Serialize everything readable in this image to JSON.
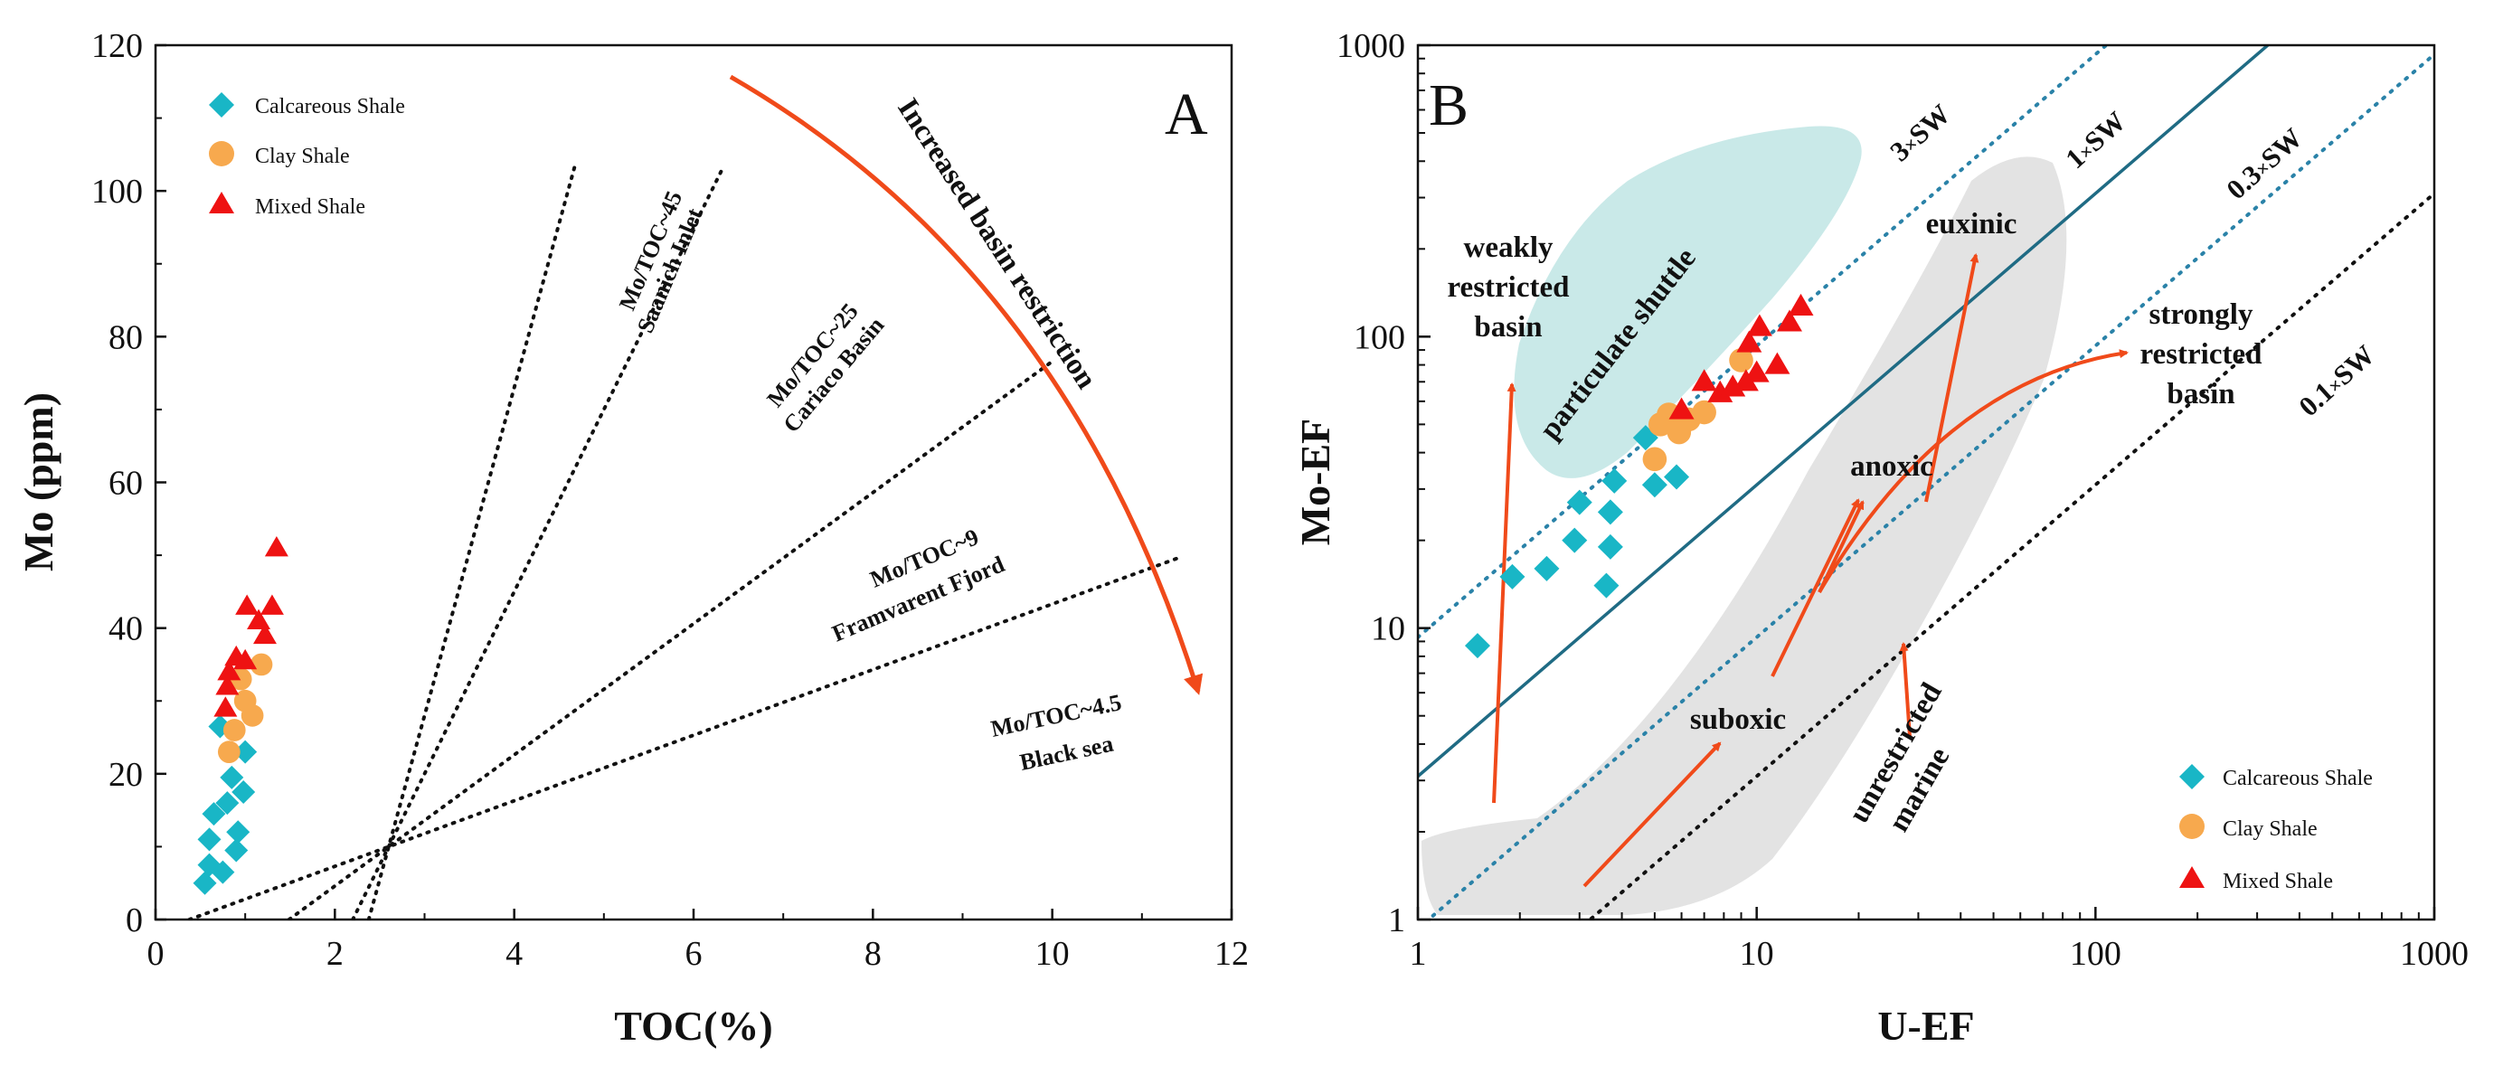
{
  "colors": {
    "calcareous": "#19b6c6",
    "clay": "#f7a94e",
    "mixed": "#ee1212",
    "arrow": "#f04a1a",
    "sw_solid": "#1f6b84",
    "sw_dotted": "#2a82a8",
    "shuttle_fill": "#c9e9e8",
    "gray_field": "#e3e3e3"
  },
  "chart_data": [
    {
      "type": "scatter",
      "panel_label": "A",
      "xlabel": "TOC(%)",
      "ylabel": "Mo (ppm)",
      "xlim": [
        0,
        12
      ],
      "ylim": [
        0,
        120
      ],
      "x_ticks": [
        "0",
        "2",
        "4",
        "6",
        "8",
        "10",
        "12"
      ],
      "y_ticks": [
        "0",
        "20",
        "40",
        "60",
        "80",
        "100",
        "120"
      ],
      "legend": [
        "Calcareous Shale",
        "Clay Shale",
        "Mixed Shale"
      ],
      "series": [
        {
          "name": "Calcareous Shale",
          "marker": "diamond",
          "points": [
            [
              0.55,
              5
            ],
            [
              0.6,
              7.5
            ],
            [
              0.6,
              11
            ],
            [
              0.65,
              14.5
            ],
            [
              0.72,
              26.5
            ],
            [
              0.75,
              6.5
            ],
            [
              0.8,
              16
            ],
            [
              0.85,
              19.5
            ],
            [
              0.9,
              9.5
            ],
            [
              0.92,
              12
            ],
            [
              0.98,
              17.5
            ],
            [
              1.0,
              23
            ]
          ]
        },
        {
          "name": "Clay Shale",
          "marker": "circle",
          "points": [
            [
              0.82,
              23
            ],
            [
              0.88,
              26
            ],
            [
              0.95,
              33
            ],
            [
              1.0,
              30
            ],
            [
              1.08,
              28
            ],
            [
              1.18,
              35
            ]
          ]
        },
        {
          "name": "Mixed Shale",
          "marker": "triangle",
          "points": [
            [
              0.78,
              29
            ],
            [
              0.8,
              32
            ],
            [
              0.82,
              34
            ],
            [
              0.9,
              36
            ],
            [
              1.0,
              35.5
            ],
            [
              1.02,
              43
            ],
            [
              1.15,
              41
            ],
            [
              1.22,
              39
            ],
            [
              1.3,
              43
            ],
            [
              1.35,
              51
            ]
          ]
        }
      ],
      "reference_lines": [
        {
          "ratio": 45,
          "label_1": "Mo/TOC~45",
          "label_2": "Saanich Inlet"
        },
        {
          "ratio": 25,
          "label_1": "Mo/TOC~25",
          "label_2": "Cariaco Basin"
        },
        {
          "ratio": 9,
          "label_1": "Mo/TOC~9",
          "label_2": "Framvarent Fjord"
        },
        {
          "ratio": 4.5,
          "label_1": "Mo/TOC~4.5",
          "label_2": "Black sea"
        }
      ],
      "arrow_label": "Increased basin restriction"
    },
    {
      "type": "scatter",
      "panel_label": "B",
      "xlabel": "U-EF",
      "ylabel": "Mo-EF",
      "x_scale": "log",
      "y_scale": "log",
      "xlim": [
        1,
        1000
      ],
      "ylim": [
        1,
        1000
      ],
      "x_ticks": [
        "1",
        "10",
        "100",
        "1000"
      ],
      "y_ticks": [
        "1",
        "10",
        "100",
        "1000"
      ],
      "legend": [
        "Calcareous Shale",
        "Clay Shale",
        "Mixed Shale"
      ],
      "series": [
        {
          "name": "Calcareous Shale",
          "marker": "diamond",
          "points": [
            [
              1.5,
              8.7
            ],
            [
              1.9,
              15
            ],
            [
              2.4,
              16
            ],
            [
              2.9,
              20
            ],
            [
              3.0,
              27
            ],
            [
              3.6,
              14
            ],
            [
              3.7,
              19
            ],
            [
              3.7,
              25
            ],
            [
              3.8,
              32
            ],
            [
              4.7,
              45
            ],
            [
              5.0,
              31
            ],
            [
              5.8,
              33
            ]
          ]
        },
        {
          "name": "Clay Shale",
          "marker": "circle",
          "points": [
            [
              5.0,
              38
            ],
            [
              5.2,
              50
            ],
            [
              5.5,
              54
            ],
            [
              5.9,
              47
            ],
            [
              6.3,
              52
            ],
            [
              7.0,
              55
            ],
            [
              9.0,
              83
            ]
          ]
        },
        {
          "name": "Mixed Shale",
          "marker": "triangle",
          "points": [
            [
              6.0,
              56
            ],
            [
              7.0,
              70
            ],
            [
              7.8,
              64
            ],
            [
              8.5,
              67
            ],
            [
              9.3,
              70
            ],
            [
              9.5,
              95
            ],
            [
              10.0,
              75
            ],
            [
              10.2,
              108
            ],
            [
              11.5,
              80
            ],
            [
              12.5,
              112
            ],
            [
              13.5,
              127
            ]
          ]
        }
      ],
      "sw_lines": [
        {
          "factor": 3,
          "label_prefix": "3",
          "label_suffix": "SW",
          "style": "dotted"
        },
        {
          "factor": 1,
          "label_prefix": "1",
          "label_suffix": "SW",
          "style": "solid"
        },
        {
          "factor": 0.3,
          "label_prefix": "0.3",
          "label_suffix": "SW",
          "style": "dotted"
        },
        {
          "factor": 0.1,
          "label_prefix": "0.1",
          "label_suffix": "SW",
          "style": "dotted"
        }
      ],
      "sw_times_symbol": "×",
      "annotations": {
        "weakly_1": "weakly",
        "weakly_2": "restricted",
        "weakly_3": "basin",
        "particulate_shuttle": "particulate shuttle",
        "euxinic": "euxinic",
        "anoxic": "anoxic",
        "suboxic": "suboxic",
        "strongly_1": "strongly",
        "strongly_2": "restricted",
        "strongly_3": "basin",
        "unrestricted_1": "unrestricted",
        "unrestricted_2": "marine"
      }
    }
  ]
}
